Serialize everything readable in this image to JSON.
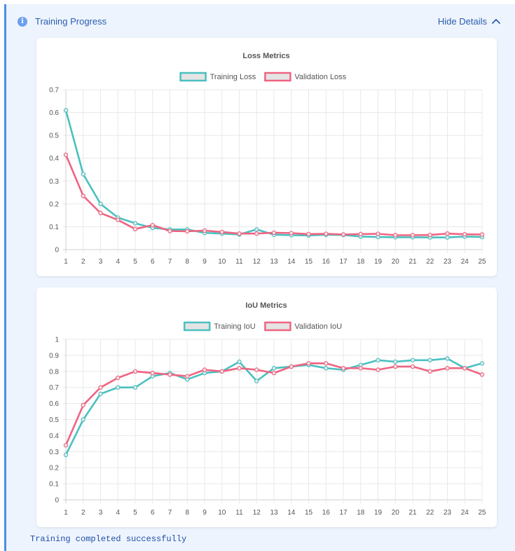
{
  "header": {
    "title": "Training Progress",
    "toggle_label": "Hide Details"
  },
  "status": "Training completed successfully",
  "colors": {
    "training": "#4bc0c0",
    "validation": "#f06482",
    "accent": "#2a5db0"
  },
  "chart_data": [
    {
      "type": "line",
      "title": "Loss Metrics",
      "x": [
        1,
        2,
        3,
        4,
        5,
        6,
        7,
        8,
        9,
        10,
        11,
        12,
        13,
        14,
        15,
        16,
        17,
        18,
        19,
        20,
        21,
        22,
        23,
        24,
        25
      ],
      "ylim": [
        0,
        0.7
      ],
      "yticks": [
        0,
        0.1,
        0.2,
        0.3,
        0.4,
        0.5,
        0.6,
        0.7
      ],
      "grid": true,
      "legend": "top",
      "series": [
        {
          "name": "Training Loss",
          "values": [
            0.61,
            0.33,
            0.2,
            0.14,
            0.115,
            0.095,
            0.088,
            0.088,
            0.073,
            0.07,
            0.066,
            0.088,
            0.065,
            0.063,
            0.062,
            0.065,
            0.064,
            0.057,
            0.055,
            0.054,
            0.054,
            0.053,
            0.053,
            0.057,
            0.055
          ]
        },
        {
          "name": "Validation Loss",
          "values": [
            0.415,
            0.235,
            0.16,
            0.13,
            0.09,
            0.107,
            0.081,
            0.08,
            0.083,
            0.077,
            0.07,
            0.07,
            0.074,
            0.072,
            0.068,
            0.069,
            0.066,
            0.068,
            0.069,
            0.063,
            0.063,
            0.064,
            0.07,
            0.067,
            0.066
          ]
        }
      ]
    },
    {
      "type": "line",
      "title": "IoU Metrics",
      "x": [
        1,
        2,
        3,
        4,
        5,
        6,
        7,
        8,
        9,
        10,
        11,
        12,
        13,
        14,
        15,
        16,
        17,
        18,
        19,
        20,
        21,
        22,
        23,
        24,
        25
      ],
      "ylim": [
        0,
        1.0
      ],
      "yticks": [
        0,
        0.1,
        0.2,
        0.3,
        0.4,
        0.5,
        0.6,
        0.7,
        0.8,
        0.9,
        1.0
      ],
      "grid": true,
      "legend": "top",
      "series": [
        {
          "name": "Training IoU",
          "values": [
            0.28,
            0.5,
            0.66,
            0.7,
            0.7,
            0.77,
            0.79,
            0.75,
            0.79,
            0.8,
            0.86,
            0.74,
            0.82,
            0.83,
            0.84,
            0.82,
            0.81,
            0.84,
            0.87,
            0.86,
            0.87,
            0.87,
            0.88,
            0.82,
            0.85
          ]
        },
        {
          "name": "Validation IoU",
          "values": [
            0.34,
            0.59,
            0.7,
            0.76,
            0.8,
            0.79,
            0.78,
            0.77,
            0.81,
            0.8,
            0.82,
            0.81,
            0.79,
            0.83,
            0.85,
            0.85,
            0.82,
            0.82,
            0.81,
            0.83,
            0.83,
            0.8,
            0.82,
            0.82,
            0.78
          ]
        }
      ]
    }
  ]
}
